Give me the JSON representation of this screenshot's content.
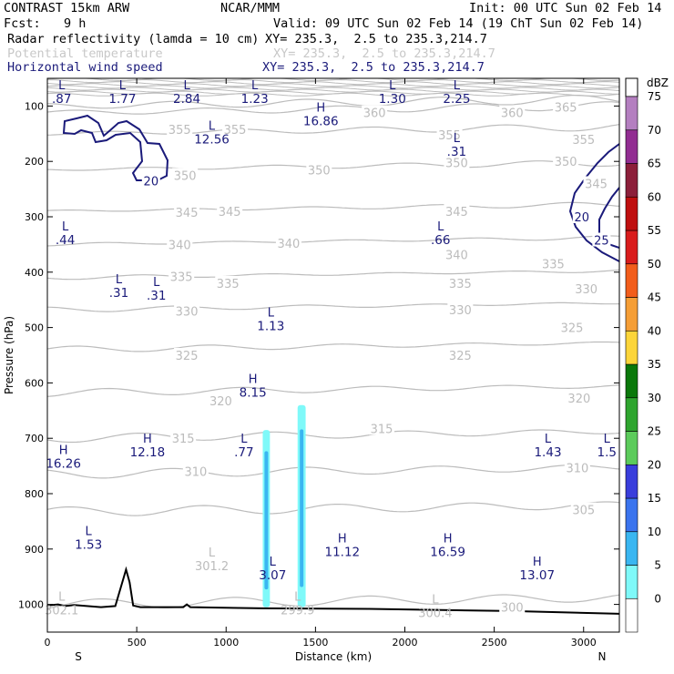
{
  "header": {
    "title": "CONTRAST 15km ARW",
    "center": "NCAR/MMM",
    "init": "Init: 00 UTC Sun 02 Feb 14",
    "fcst_label": "Fcst:",
    "fcst_value": "9 h",
    "valid": "Valid: 09 UTC Sun 02 Feb 14 (19 ChT Sun 02 Feb 14)",
    "fields": [
      {
        "name": "Radar reflectivity (lamda = 10 cm)",
        "xy": "XY= 235.3,  2.5 to 235.3,214.7",
        "color": "#000000"
      },
      {
        "name": "Potential temperature",
        "xy": "XY= 235.3,  2.5 to 235.3,214.7",
        "color": "#c8c8c8"
      },
      {
        "name": "Horizontal wind speed",
        "xy": "XY= 235.3,  2.5 to 235.3,214.7",
        "color": "#1a1a7a"
      }
    ]
  },
  "chart_data": {
    "type": "cross-section",
    "xlabel": "Distance (km)",
    "ylabel": "Pressure (hPa)",
    "xlim": [
      0,
      3200
    ],
    "ylim": [
      1050,
      50
    ],
    "x_ticks": [
      0,
      500,
      1000,
      1500,
      2000,
      2500,
      3000
    ],
    "y_ticks": [
      100,
      200,
      300,
      400,
      500,
      600,
      700,
      800,
      900,
      1000
    ],
    "left_end_label": "S",
    "right_end_label": "N",
    "theta_contours": {
      "color": "#bcbcbc",
      "levels": [
        {
          "value": 300,
          "p": 1000
        },
        {
          "value": 305,
          "p": 833
        },
        {
          "value": 310,
          "p": 765
        },
        {
          "value": 315,
          "p": 700
        },
        {
          "value": 320,
          "p": 618
        },
        {
          "value": 325,
          "p": 540
        },
        {
          "value": 330,
          "p": 468
        },
        {
          "value": 335,
          "p": 410
        },
        {
          "value": 340,
          "p": 350
        },
        {
          "value": 345,
          "p": 290
        },
        {
          "value": 350,
          "p": 215
        },
        {
          "value": 355,
          "p": 150
        },
        {
          "value": 360,
          "p": 112
        },
        {
          "value": 365,
          "p": 100
        }
      ],
      "labels": [
        {
          "text": "300",
          "x": 2600,
          "p": 1005
        },
        {
          "text": "305",
          "x": 3000,
          "p": 829
        },
        {
          "text": "310",
          "x": 2965,
          "p": 753
        },
        {
          "text": "310",
          "x": 830,
          "p": 760
        },
        {
          "text": "315",
          "x": 760,
          "p": 700
        },
        {
          "text": "315",
          "x": 1870,
          "p": 682
        },
        {
          "text": "320",
          "x": 970,
          "p": 632
        },
        {
          "text": "320",
          "x": 2975,
          "p": 627
        },
        {
          "text": "325",
          "x": 780,
          "p": 550
        },
        {
          "text": "325",
          "x": 2310,
          "p": 550
        },
        {
          "text": "325",
          "x": 2935,
          "p": 500
        },
        {
          "text": "330",
          "x": 780,
          "p": 470
        },
        {
          "text": "330",
          "x": 2310,
          "p": 468
        },
        {
          "text": "330",
          "x": 3015,
          "p": 430
        },
        {
          "text": "335",
          "x": 750,
          "p": 408
        },
        {
          "text": "335",
          "x": 1010,
          "p": 420
        },
        {
          "text": "335",
          "x": 2310,
          "p": 420
        },
        {
          "text": "335",
          "x": 2830,
          "p": 385
        },
        {
          "text": "340",
          "x": 740,
          "p": 350
        },
        {
          "text": "340",
          "x": 1350,
          "p": 348
        },
        {
          "text": "340",
          "x": 2290,
          "p": 368
        },
        {
          "text": "345",
          "x": 780,
          "p": 292
        },
        {
          "text": "345",
          "x": 1020,
          "p": 290
        },
        {
          "text": "345",
          "x": 2290,
          "p": 290
        },
        {
          "text": "345",
          "x": 3070,
          "p": 240
        },
        {
          "text": "350",
          "x": 770,
          "p": 225
        },
        {
          "text": "350",
          "x": 1520,
          "p": 215
        },
        {
          "text": "350",
          "x": 2290,
          "p": 202
        },
        {
          "text": "350",
          "x": 2900,
          "p": 200
        },
        {
          "text": "355",
          "x": 740,
          "p": 142
        },
        {
          "text": "355",
          "x": 1050,
          "p": 142
        },
        {
          "text": "355",
          "x": 2250,
          "p": 152
        },
        {
          "text": "355",
          "x": 3000,
          "p": 160
        },
        {
          "text": "360",
          "x": 1830,
          "p": 112
        },
        {
          "text": "360",
          "x": 2600,
          "p": 112
        },
        {
          "text": "365",
          "x": 2900,
          "p": 102
        }
      ],
      "extrema": [
        {
          "letter": "L",
          "value": "301.2",
          "x": 920,
          "p": 920
        },
        {
          "letter": "L",
          "value": "299.9",
          "x": 1400,
          "p": 1000
        },
        {
          "letter": "L",
          "value": "300.4",
          "x": 2170,
          "p": 1005
        },
        {
          "letter": "L",
          "value": "302.1",
          "x": 80,
          "p": 1000
        }
      ]
    },
    "wind_speed": {
      "color": "#1a1a7a",
      "contour_labels": [
        {
          "text": "20",
          "x": 580,
          "p": 235
        },
        {
          "text": "20",
          "x": 2990,
          "p": 300
        },
        {
          "text": "25",
          "x": 3100,
          "p": 342
        }
      ],
      "extrema": [
        {
          "letter": "L",
          "value": ".87",
          "x": 80,
          "p": 75
        },
        {
          "letter": "L",
          "value": "1.77",
          "x": 420,
          "p": 75
        },
        {
          "letter": "L",
          "value": "2.84",
          "x": 780,
          "p": 75
        },
        {
          "letter": "L",
          "value": "1.23",
          "x": 1160,
          "p": 75
        },
        {
          "letter": "L",
          "value": "1.30",
          "x": 1930,
          "p": 75
        },
        {
          "letter": "L",
          "value": "2.25",
          "x": 2290,
          "p": 75
        },
        {
          "letter": "H",
          "value": "16.86",
          "x": 1530,
          "p": 115
        },
        {
          "letter": "L",
          "value": "12.56",
          "x": 920,
          "p": 148
        },
        {
          "letter": "L",
          "value": ".31",
          "x": 2290,
          "p": 170
        },
        {
          "letter": "L",
          "value": ".44",
          "x": 100,
          "p": 330
        },
        {
          "letter": "L",
          "value": ".66",
          "x": 2200,
          "p": 330
        },
        {
          "letter": "L",
          "value": ".31",
          "x": 400,
          "p": 425
        },
        {
          "letter": "L",
          "value": ".31",
          "x": 610,
          "p": 430
        },
        {
          "letter": "L",
          "value": "1.13",
          "x": 1250,
          "p": 485
        },
        {
          "letter": "H",
          "value": "8.15",
          "x": 1150,
          "p": 605
        },
        {
          "letter": "H",
          "value": "12.18",
          "x": 560,
          "p": 713
        },
        {
          "letter": "L",
          "value": ".77",
          "x": 1100,
          "p": 713
        },
        {
          "letter": "L",
          "value": "1.43",
          "x": 2800,
          "p": 713
        },
        {
          "letter": "L",
          "value": "1.5",
          "x": 3130,
          "p": 713
        },
        {
          "letter": "H",
          "value": "16.26",
          "x": 90,
          "p": 733
        },
        {
          "letter": "L",
          "value": "1.53",
          "x": 230,
          "p": 880
        },
        {
          "letter": "H",
          "value": "11.12",
          "x": 1650,
          "p": 893
        },
        {
          "letter": "H",
          "value": "16.59",
          "x": 2240,
          "p": 893
        },
        {
          "letter": "L",
          "value": "3.07",
          "x": 1260,
          "p": 935
        },
        {
          "letter": "H",
          "value": "13.07",
          "x": 2740,
          "p": 935
        }
      ]
    },
    "reflectivity": {
      "colorbar_title": "dBZ",
      "levels": [
        0,
        5,
        10,
        15,
        20,
        25,
        30,
        35,
        40,
        45,
        50,
        55,
        60,
        65,
        70,
        75
      ],
      "colors": [
        "#ffffff",
        "#7ff9f9",
        "#3ab6f1",
        "#3b74ee",
        "#393edc",
        "#5ccb5b",
        "#2fa52f",
        "#0a780a",
        "#fcd53a",
        "#f59e36",
        "#f25d1b",
        "#d91c1c",
        "#bf0f0f",
        "#8c1f3a",
        "#922d92",
        "#b47fc0"
      ],
      "cells": [
        {
          "x0": 1205,
          "x1": 1245,
          "p_top": 685,
          "p_bot": 1005
        },
        {
          "x0": 1400,
          "x1": 1445,
          "p_top": 640,
          "p_bot": 1005
        }
      ]
    },
    "terrain": [
      [
        0,
        1002
      ],
      [
        60,
        1000
      ],
      [
        100,
        1003
      ],
      [
        150,
        1001
      ],
      [
        300,
        1005
      ],
      [
        380,
        1003
      ],
      [
        410,
        970
      ],
      [
        440,
        937
      ],
      [
        460,
        960
      ],
      [
        480,
        1002
      ],
      [
        520,
        1005
      ],
      [
        760,
        1005
      ],
      [
        780,
        1000
      ],
      [
        800,
        1005
      ],
      [
        1200,
        1007
      ],
      [
        1800,
        1008
      ],
      [
        2600,
        1012
      ],
      [
        3200,
        1017
      ]
    ]
  }
}
